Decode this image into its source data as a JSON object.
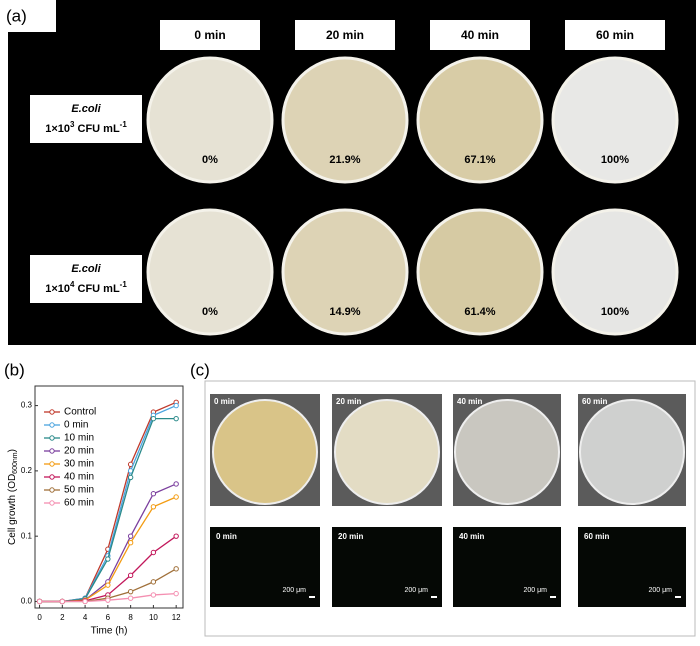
{
  "panel_a": {
    "label": "(a)",
    "columns": [
      "0 min",
      "20 min",
      "40 min",
      "60 min"
    ],
    "rows": [
      {
        "species": "E.coli",
        "conc": "1×10",
        "exp": "3",
        "unit": " CFU mL",
        "unit_exp": "-1",
        "percents": [
          "0%",
          "21.9%",
          "67.1%",
          "100%"
        ]
      },
      {
        "species": "E.coli",
        "conc": "1×10",
        "exp": "4",
        "unit": " CFU mL",
        "unit_exp": "-1",
        "percents": [
          "0%",
          "14.9%",
          "61.4%",
          "100%"
        ]
      }
    ]
  },
  "chart_data": {
    "type": "line",
    "label": "(b)",
    "x_label": "Time (h)",
    "y_label": {
      "main": "Cell growth (OD",
      "sub": "600nm",
      "end": ")"
    },
    "x": [
      0,
      2,
      4,
      6,
      8,
      10,
      12
    ],
    "xlim": [
      -0.4,
      12.6
    ],
    "xticks": [
      0,
      2,
      4,
      6,
      8,
      10,
      12
    ],
    "ylim": [
      -0.01,
      0.33
    ],
    "yticks": [
      {
        "value": 0,
        "label": "0.0"
      },
      0.1,
      0.2,
      0.3
    ],
    "series": [
      {
        "name": "Control",
        "color": "#c0392b",
        "values": [
          0,
          0,
          0.005,
          0.08,
          0.21,
          0.29,
          0.305
        ]
      },
      {
        "name": "0 min",
        "color": "#4aa3df",
        "values": [
          0,
          0,
          0.005,
          0.07,
          0.2,
          0.285,
          0.3
        ]
      },
      {
        "name": "10 min",
        "color": "#2a8a8a",
        "values": [
          0,
          0,
          0.004,
          0.065,
          0.19,
          0.28,
          0.28
        ]
      },
      {
        "name": "20 min",
        "color": "#7b3f9e",
        "values": [
          0,
          0,
          0.002,
          0.03,
          0.1,
          0.165,
          0.18
        ]
      },
      {
        "name": "30 min",
        "color": "#f39c12",
        "values": [
          0,
          0,
          0.002,
          0.025,
          0.09,
          0.145,
          0.16
        ]
      },
      {
        "name": "40 min",
        "color": "#c2185b",
        "values": [
          0,
          0,
          0.001,
          0.01,
          0.04,
          0.075,
          0.1
        ]
      },
      {
        "name": "50 min",
        "color": "#a0703a",
        "values": [
          0,
          0,
          0,
          0.005,
          0.015,
          0.03,
          0.05
        ]
      },
      {
        "name": "60 min",
        "color": "#f48fb1",
        "values": [
          0,
          0,
          0,
          0.002,
          0.005,
          0.01,
          0.012
        ]
      }
    ]
  },
  "panel_c": {
    "label": "(c)",
    "photos": [
      "0 min",
      "20 min",
      "40 min",
      "60 min"
    ],
    "micrographs": [
      "0 min",
      "20 min",
      "40 min",
      "60 min"
    ],
    "scale": "200 μm"
  }
}
